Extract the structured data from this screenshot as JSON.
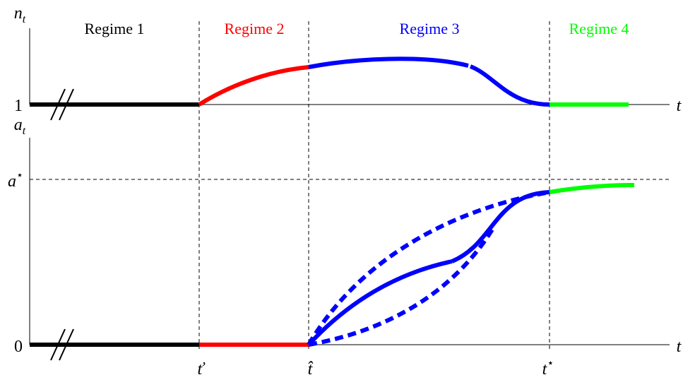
{
  "regimes": [
    {
      "label": "Regime 1",
      "color": "#000000"
    },
    {
      "label": "Regime 2",
      "color": "#ff0000"
    },
    {
      "label": "Regime 3",
      "color": "#0000ff"
    },
    {
      "label": "Regime 4",
      "color": "#00ff00"
    }
  ],
  "top_panel": {
    "y_axis_label": "n",
    "y_axis_sub": "t",
    "x_axis_label": "t",
    "baseline_tick": "1"
  },
  "bottom_panel": {
    "y_axis_label": "a",
    "y_axis_sub": "t",
    "x_axis_label": "t",
    "baseline_tick": "0",
    "asymptote_label": "a",
    "asymptote_sup": "⋆"
  },
  "x_ticks": {
    "t_check": "ť",
    "t_hat": "t̂",
    "t_star_base": "t",
    "t_star_sup": "⋆"
  },
  "colors": {
    "axis": "#000000",
    "guide": "#000000"
  }
}
